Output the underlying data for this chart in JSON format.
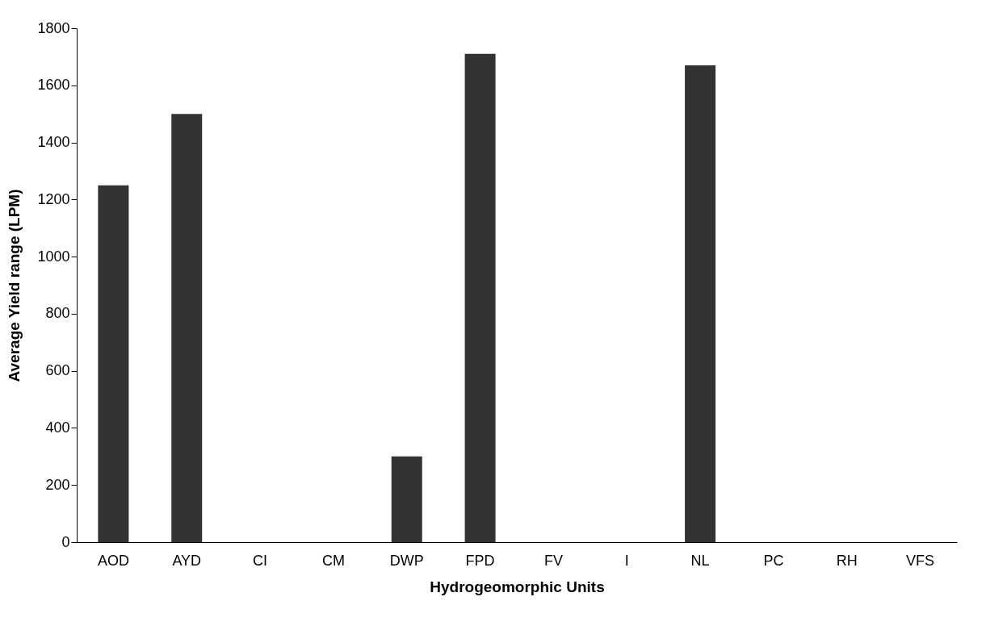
{
  "chart_data": {
    "type": "bar",
    "xlabel": "Hydrogeomorphic Units",
    "ylabel": "Average Yield range (LPM)",
    "categories": [
      "AOD",
      "AYD",
      "CI",
      "CM",
      "DWP",
      "FPD",
      "FV",
      "I",
      "NL",
      "PC",
      "RH",
      "VFS"
    ],
    "values": [
      1250,
      1500,
      0,
      0,
      300,
      1710,
      0,
      0,
      1670,
      0,
      0,
      0
    ],
    "color": "#333333",
    "ylim": [
      0,
      1800
    ],
    "yticks": [
      0,
      200,
      400,
      600,
      800,
      1000,
      1200,
      1400,
      1600,
      1800
    ],
    "grid": false
  }
}
